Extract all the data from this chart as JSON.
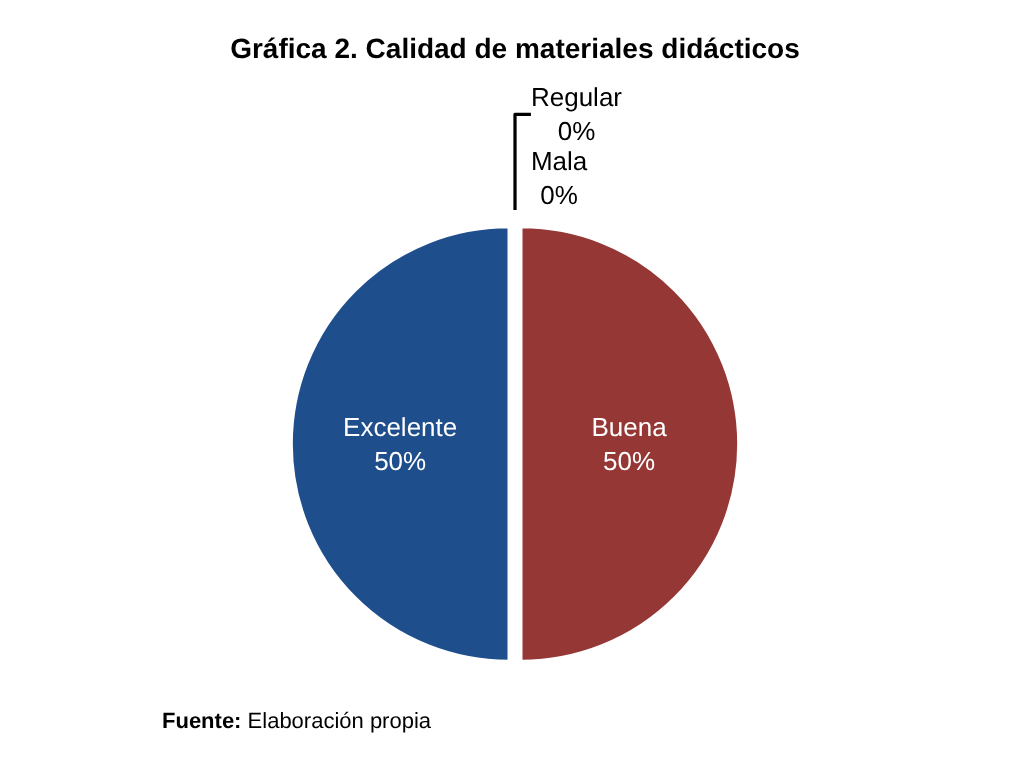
{
  "chart_data": {
    "type": "pie",
    "title": "Gráfica 2. Calidad de materiales didácticos",
    "categories": [
      "Mala",
      "Regular",
      "Buena",
      "Excelente"
    ],
    "values": [
      0,
      0,
      50,
      50
    ],
    "value_labels": [
      "0%",
      "0%",
      "50%",
      "50%"
    ],
    "colors": [
      "#31859c",
      "#77933c",
      "#953735",
      "#1f4e8c"
    ],
    "legend": false,
    "annotations": [
      "Fuente: Elaboración propia"
    ]
  }
}
